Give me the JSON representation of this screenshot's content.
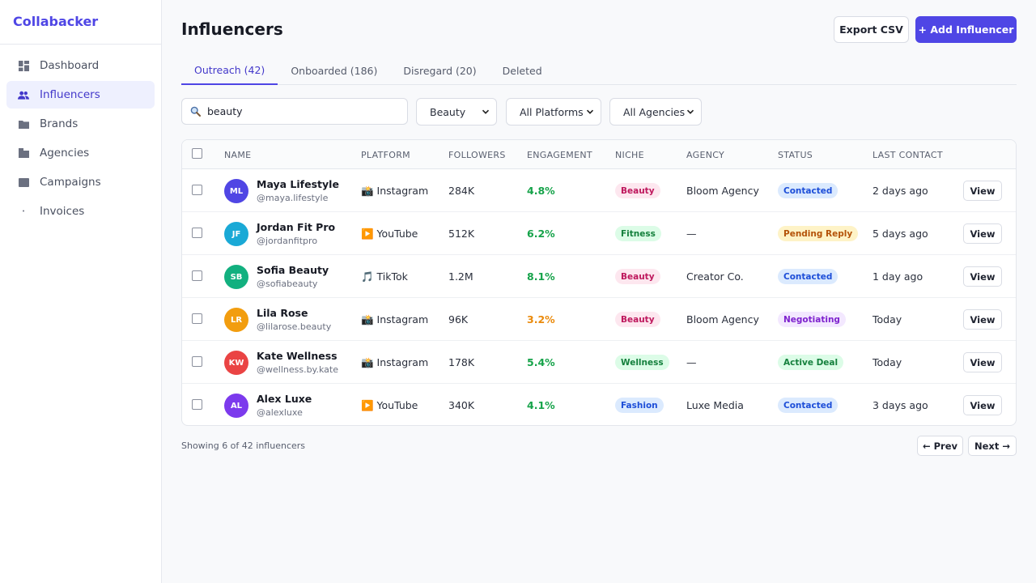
{
  "app": {
    "name": "Collabacker"
  },
  "sidebar": {
    "items": [
      {
        "label": "Dashboard",
        "icon": "dashboard-icon"
      },
      {
        "label": "Influencers",
        "icon": "users-icon"
      },
      {
        "label": "Brands",
        "icon": "folder-icon"
      },
      {
        "label": "Agencies",
        "icon": "building-icon"
      },
      {
        "label": "Campaigns",
        "icon": "campaign-icon"
      },
      {
        "label": "Invoices",
        "icon": "dot-icon"
      }
    ],
    "active": "Influencers"
  },
  "header": {
    "title": "Influencers",
    "export_label": "Export CSV",
    "add_label": "+ Add Influencer"
  },
  "tabs": [
    {
      "label": "Outreach (42)"
    },
    {
      "label": "Onboarded (186)"
    },
    {
      "label": "Disregard (20)"
    },
    {
      "label": "Deleted"
    }
  ],
  "filters": {
    "search_value": "beauty",
    "niche": "Beauty",
    "platform": "All Platforms",
    "agency": "All Agencies"
  },
  "table": {
    "columns": [
      "NAME",
      "PLATFORM",
      "FOLLOWERS",
      "ENGAGEMENT",
      "NICHE",
      "AGENCY",
      "STATUS",
      "LAST CONTACT"
    ],
    "rows": [
      {
        "initials": "ML",
        "avatar_color": "#5046e4",
        "name": "Maya Lifestyle",
        "handle": "@maya.lifestyle",
        "platform": "📸 Instagram",
        "followers": "284K",
        "engagement": "4.8%",
        "eng_color": "#16a34a",
        "niche": "Beauty",
        "niche_bg": "#fde7ef",
        "niche_fg": "#be185d",
        "agency": "Bloom Agency",
        "status": "Contacted",
        "status_bg": "#dbeafe",
        "status_fg": "#1d4ed8",
        "last": "2 days ago",
        "view": "View"
      },
      {
        "initials": "JF",
        "avatar_color": "#1aa9d6",
        "name": "Jordan Fit Pro",
        "handle": "@jordanfitpro",
        "platform": "▶️ YouTube",
        "followers": "512K",
        "engagement": "6.2%",
        "eng_color": "#16a34a",
        "niche": "Fitness",
        "niche_bg": "#dcfce7",
        "niche_fg": "#15803d",
        "agency": "—",
        "status": "Pending Reply",
        "status_bg": "#fef3c7",
        "status_fg": "#b45309",
        "last": "5 days ago",
        "view": "View"
      },
      {
        "initials": "SB",
        "avatar_color": "#12b07f",
        "name": "Sofia Beauty",
        "handle": "@sofiabeauty",
        "platform": "🎵 TikTok",
        "followers": "1.2M",
        "engagement": "8.1%",
        "eng_color": "#16a34a",
        "niche": "Beauty",
        "niche_bg": "#fde7ef",
        "niche_fg": "#be185d",
        "agency": "Creator Co.",
        "status": "Contacted",
        "status_bg": "#dbeafe",
        "status_fg": "#1d4ed8",
        "last": "1 day ago",
        "view": "View"
      },
      {
        "initials": "LR",
        "avatar_color": "#f29d0f",
        "name": "Lila Rose",
        "handle": "@lilarose.beauty",
        "platform": "📸 Instagram",
        "followers": "96K",
        "engagement": "3.2%",
        "eng_color": "#ea8a0c",
        "niche": "Beauty",
        "niche_bg": "#fde7ef",
        "niche_fg": "#be185d",
        "agency": "Bloom Agency",
        "status": "Negotiating",
        "status_bg": "#f3e8ff",
        "status_fg": "#7e22ce",
        "last": "Today",
        "view": "View"
      },
      {
        "initials": "KW",
        "avatar_color": "#ea4444",
        "name": "Kate Wellness",
        "handle": "@wellness.by.kate",
        "platform": "📸 Instagram",
        "followers": "178K",
        "engagement": "5.4%",
        "eng_color": "#16a34a",
        "niche": "Wellness",
        "niche_bg": "#dcfce7",
        "niche_fg": "#15803d",
        "agency": "—",
        "status": "Active Deal",
        "status_bg": "#dcfce7",
        "status_fg": "#15803d",
        "last": "Today",
        "view": "View"
      },
      {
        "initials": "AL",
        "avatar_color": "#7c3aed",
        "name": "Alex Luxe",
        "handle": "@alexluxe",
        "platform": "▶️ YouTube",
        "followers": "340K",
        "engagement": "4.1%",
        "eng_color": "#16a34a",
        "niche": "Fashion",
        "niche_bg": "#dbeafe",
        "niche_fg": "#1d4ed8",
        "agency": "Luxe Media",
        "status": "Contacted",
        "status_bg": "#dbeafe",
        "status_fg": "#1d4ed8",
        "last": "3 days ago",
        "view": "View"
      }
    ]
  },
  "footer": {
    "showing": "Showing 6 of 42 influencers",
    "prev_label": "← Prev",
    "next_label": "Next →"
  }
}
